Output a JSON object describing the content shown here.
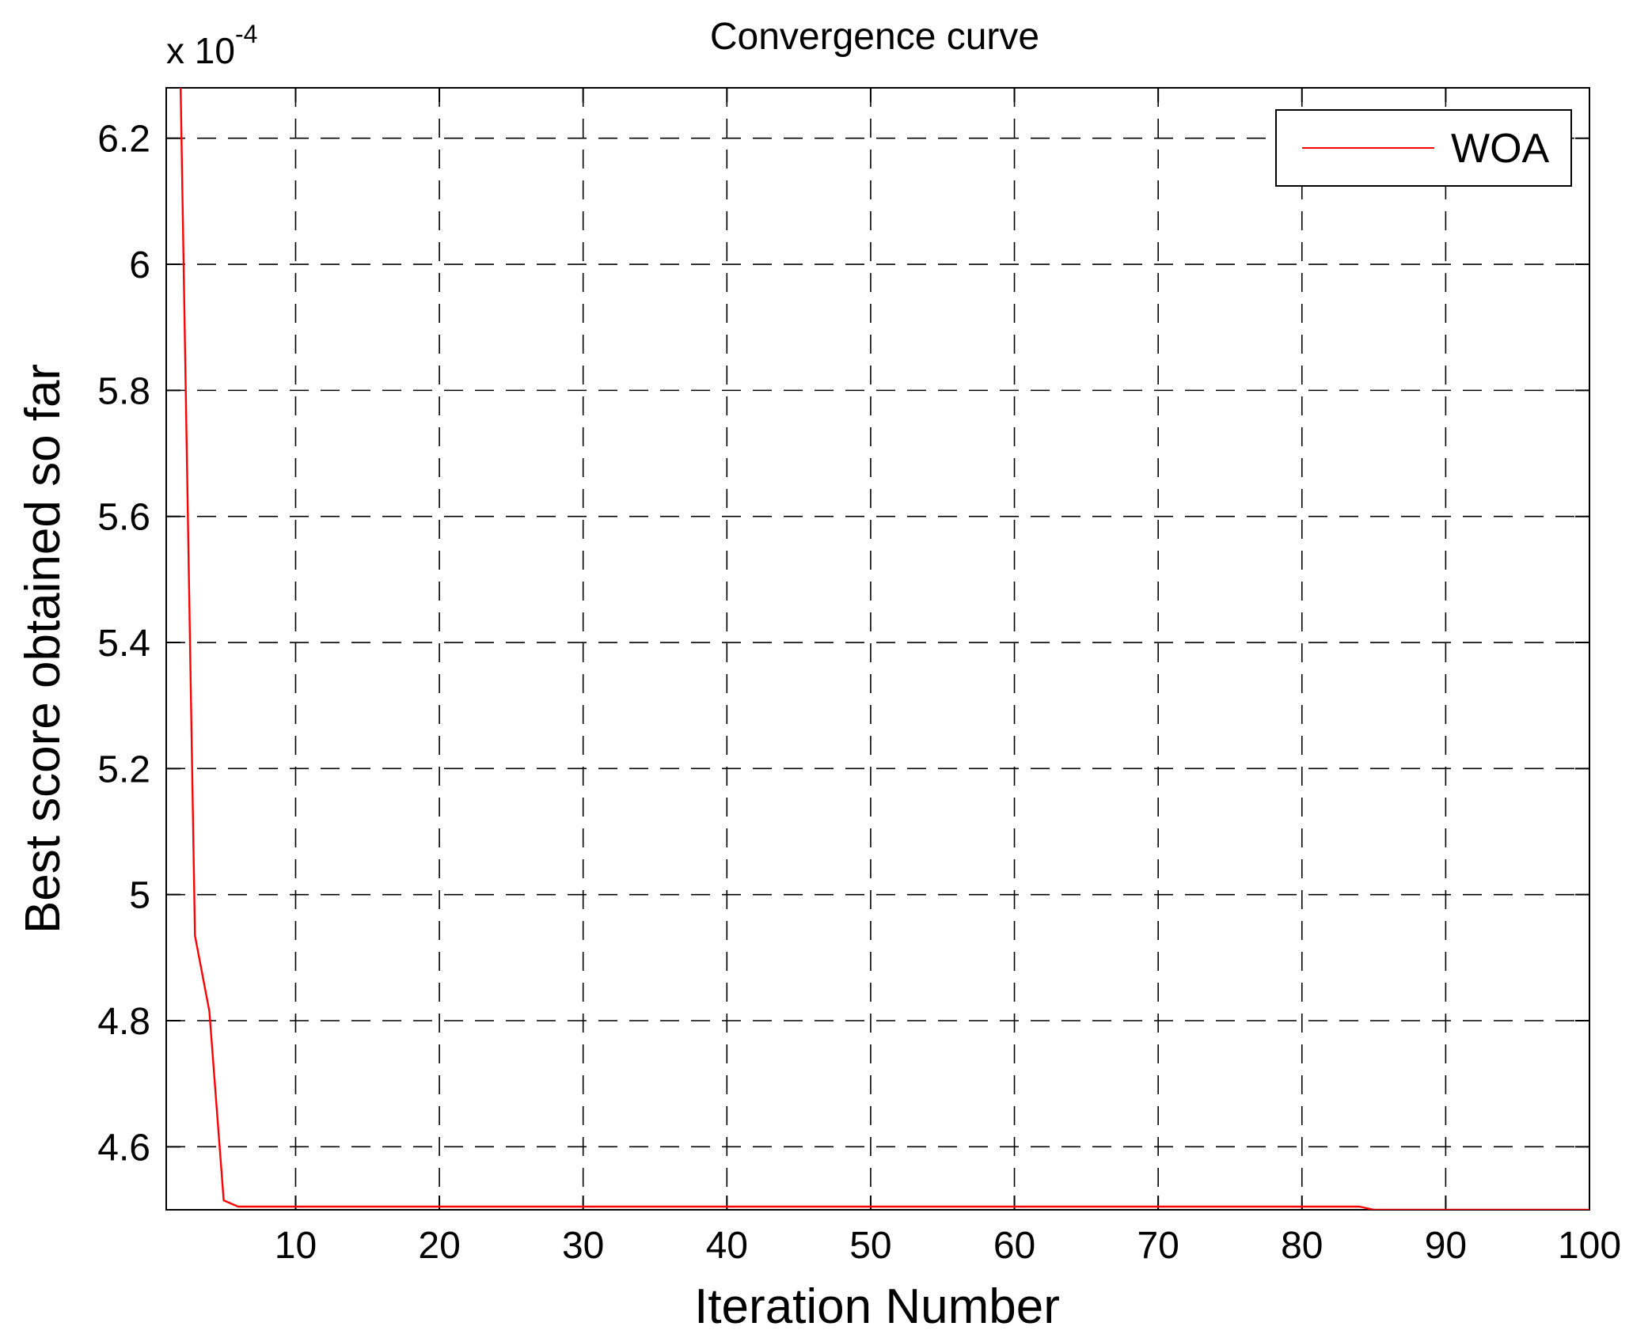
{
  "chart_data": {
    "type": "line",
    "title": "Convergence curve",
    "xlabel": "Iteration Number",
    "ylabel": "Best score obtained so far",
    "y_multiplier": {
      "base": "x 10",
      "exponent": "-4"
    },
    "xlim": [
      1,
      100
    ],
    "ylim": [
      4.5,
      6.28
    ],
    "x_ticks": [
      10,
      20,
      30,
      40,
      50,
      60,
      70,
      80,
      90,
      100
    ],
    "x_tick_labels": [
      "10",
      "20",
      "30",
      "40",
      "50",
      "60",
      "70",
      "80",
      "90",
      "100"
    ],
    "y_ticks": [
      4.6,
      4.8,
      5.0,
      5.2,
      5.4,
      5.6,
      5.8,
      6.0,
      6.2
    ],
    "y_tick_labels": [
      "4.6",
      "4.8",
      "5",
      "5.2",
      "5.4",
      "5.6",
      "5.8",
      "6",
      "6.2"
    ],
    "grid": true,
    "grid_style": "dashed",
    "legend_position": "top-right",
    "series": [
      {
        "name": "WOA",
        "color": "#ff0000",
        "x": [
          1,
          2,
          3,
          4,
          5,
          6,
          84,
          85,
          100
        ],
        "y": [
          6.3,
          6.28,
          4.935,
          4.815,
          4.515,
          4.505,
          4.505,
          4.5,
          4.5
        ]
      }
    ]
  }
}
